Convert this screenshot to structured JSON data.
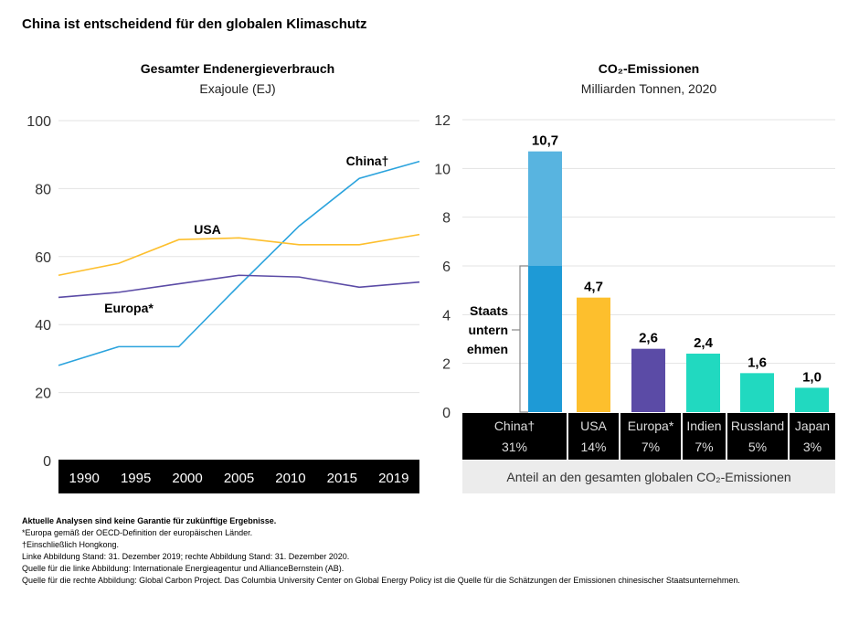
{
  "title": "China ist entscheidend für den globalen Klimaschutz",
  "chart_data": [
    {
      "type": "line",
      "title": "Gesamter Endenergieverbrauch",
      "subtitle": "Exajoule (EJ)",
      "categories": [
        "1990",
        "1995",
        "2000",
        "2005",
        "2010",
        "2015",
        "2019"
      ],
      "yticks": [
        "0",
        "20",
        "40",
        "60",
        "80",
        "100"
      ],
      "ylim": [
        0,
        100
      ],
      "grid": true,
      "series": [
        {
          "name": "China†",
          "color": "#2ba3dd",
          "values": [
            28,
            33.5,
            33.5,
            51.5,
            69,
            83,
            88
          ]
        },
        {
          "name": "USA",
          "color": "#fdbf2d",
          "values": [
            54.5,
            58,
            65,
            65.5,
            63.5,
            63.5,
            66.5
          ]
        },
        {
          "name": "Europa*",
          "color": "#5b4ba6",
          "values": [
            48,
            49.5,
            52,
            54.5,
            54,
            51,
            52.5
          ]
        }
      ]
    },
    {
      "type": "bar",
      "title": "CO₂-Emissionen",
      "subtitle": "Milliarden Tonnen, 2020",
      "yticks": [
        "0",
        "2",
        "4",
        "6",
        "8",
        "10",
        "12"
      ],
      "ylim": [
        0,
        12
      ],
      "grid": true,
      "categories": [
        "China†",
        "USA",
        "Europa*",
        "Indien",
        "Russland",
        "Japan"
      ],
      "values": [
        10.7,
        4.7,
        2.6,
        2.4,
        1.6,
        1.0
      ],
      "value_labels": [
        "10,7",
        "4,7",
        "2,6",
        "2,4",
        "1,6",
        "1,0"
      ],
      "shares": [
        "31%",
        "14%",
        "7%",
        "7%",
        "5%",
        "3%"
      ],
      "colors": [
        "#58b4e0",
        "#fdbf2d",
        "#5b4ba6",
        "#21d9c0",
        "#21d9c0",
        "#21d9c0"
      ],
      "state_enterprise": {
        "value": 6.0,
        "label": "Staats untern ehmen",
        "lines": [
          "Staats",
          "untern",
          "ehmen"
        ],
        "color": "#1e9ad6"
      },
      "share_caption": "Anteil an den gesamten globalen CO₂-Emissionen"
    }
  ],
  "footnotes": [
    "Aktuelle Analysen sind keine Garantie für zukünftige Ergebnisse.",
    "*Europa gemäß der OECD-Definition der europäischen Länder.",
    "†Einschließlich Hongkong.",
    "Linke Abbildung Stand: 31. Dezember 2019; rechte Abbildung Stand: 31. Dezember 2020.",
    "Quelle für die linke Abbildung: Internationale Energieagentur und AllianceBernstein (AB).",
    "Quelle für die rechte Abbildung: Global Carbon Project. Das Columbia University Center on Global Energy Policy ist die Quelle für die Schätzungen der Emissionen chinesischer Staatsunternehmen."
  ]
}
